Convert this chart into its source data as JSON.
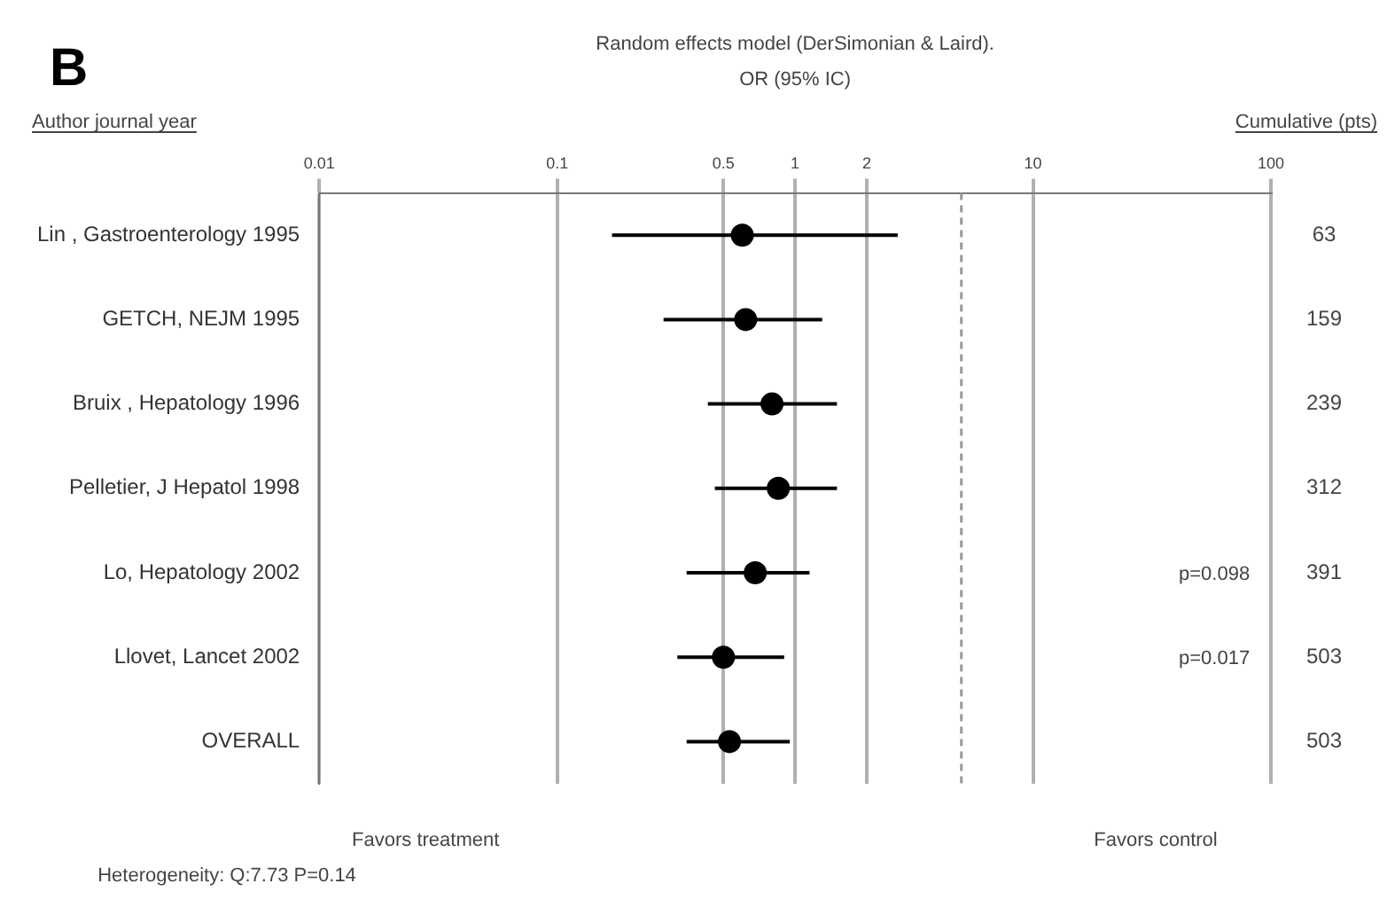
{
  "chart_data": {
    "type": "scatter",
    "orientation": "horizontal",
    "title": "B",
    "subtitle": "Random effects model (DerSimonian & Laird).\nOR (95% IC)",
    "categories": [
      "Lin , Gastroenterology 1995",
      "GETCH, NEJM 1995",
      "Bruix , Hepatology 1996",
      "Pelletier, J Hepatol 1998",
      "Lo, Hepatology 2002",
      "Llovet, Lancet 2002",
      "OVERALL"
    ],
    "y2_categories": [
      "63",
      "159",
      "239",
      "312",
      "391",
      "503",
      "503"
    ],
    "values": [
      0.6,
      0.62,
      0.8,
      0.85,
      0.68,
      0.5,
      0.53
    ],
    "errors": [
      [
        0.17,
        2.7
      ],
      [
        0.28,
        1.3
      ],
      [
        0.43,
        1.5
      ],
      [
        0.46,
        1.5
      ],
      [
        0.35,
        1.15
      ],
      [
        0.32,
        0.9
      ],
      [
        0.35,
        0.95
      ]
    ],
    "color": "#000000",
    "marker": "circle",
    "log": "x",
    "xlim": [
      0.01,
      100
    ],
    "xticks": [
      0.01,
      0.1,
      0.5,
      1,
      2,
      10,
      100
    ],
    "grid": "x",
    "ref_lines": [
      {
        "axis": "x",
        "value": 5,
        "label": null,
        "line_style": "dashed"
      }
    ],
    "annotations": [
      "Author journal year",
      "Cumulative (pts)",
      "Favors treatment",
      "Favors control",
      "Heterogeneity: Q:7.73 P=0.14",
      "p=0.098",
      "p=0.017"
    ]
  }
}
